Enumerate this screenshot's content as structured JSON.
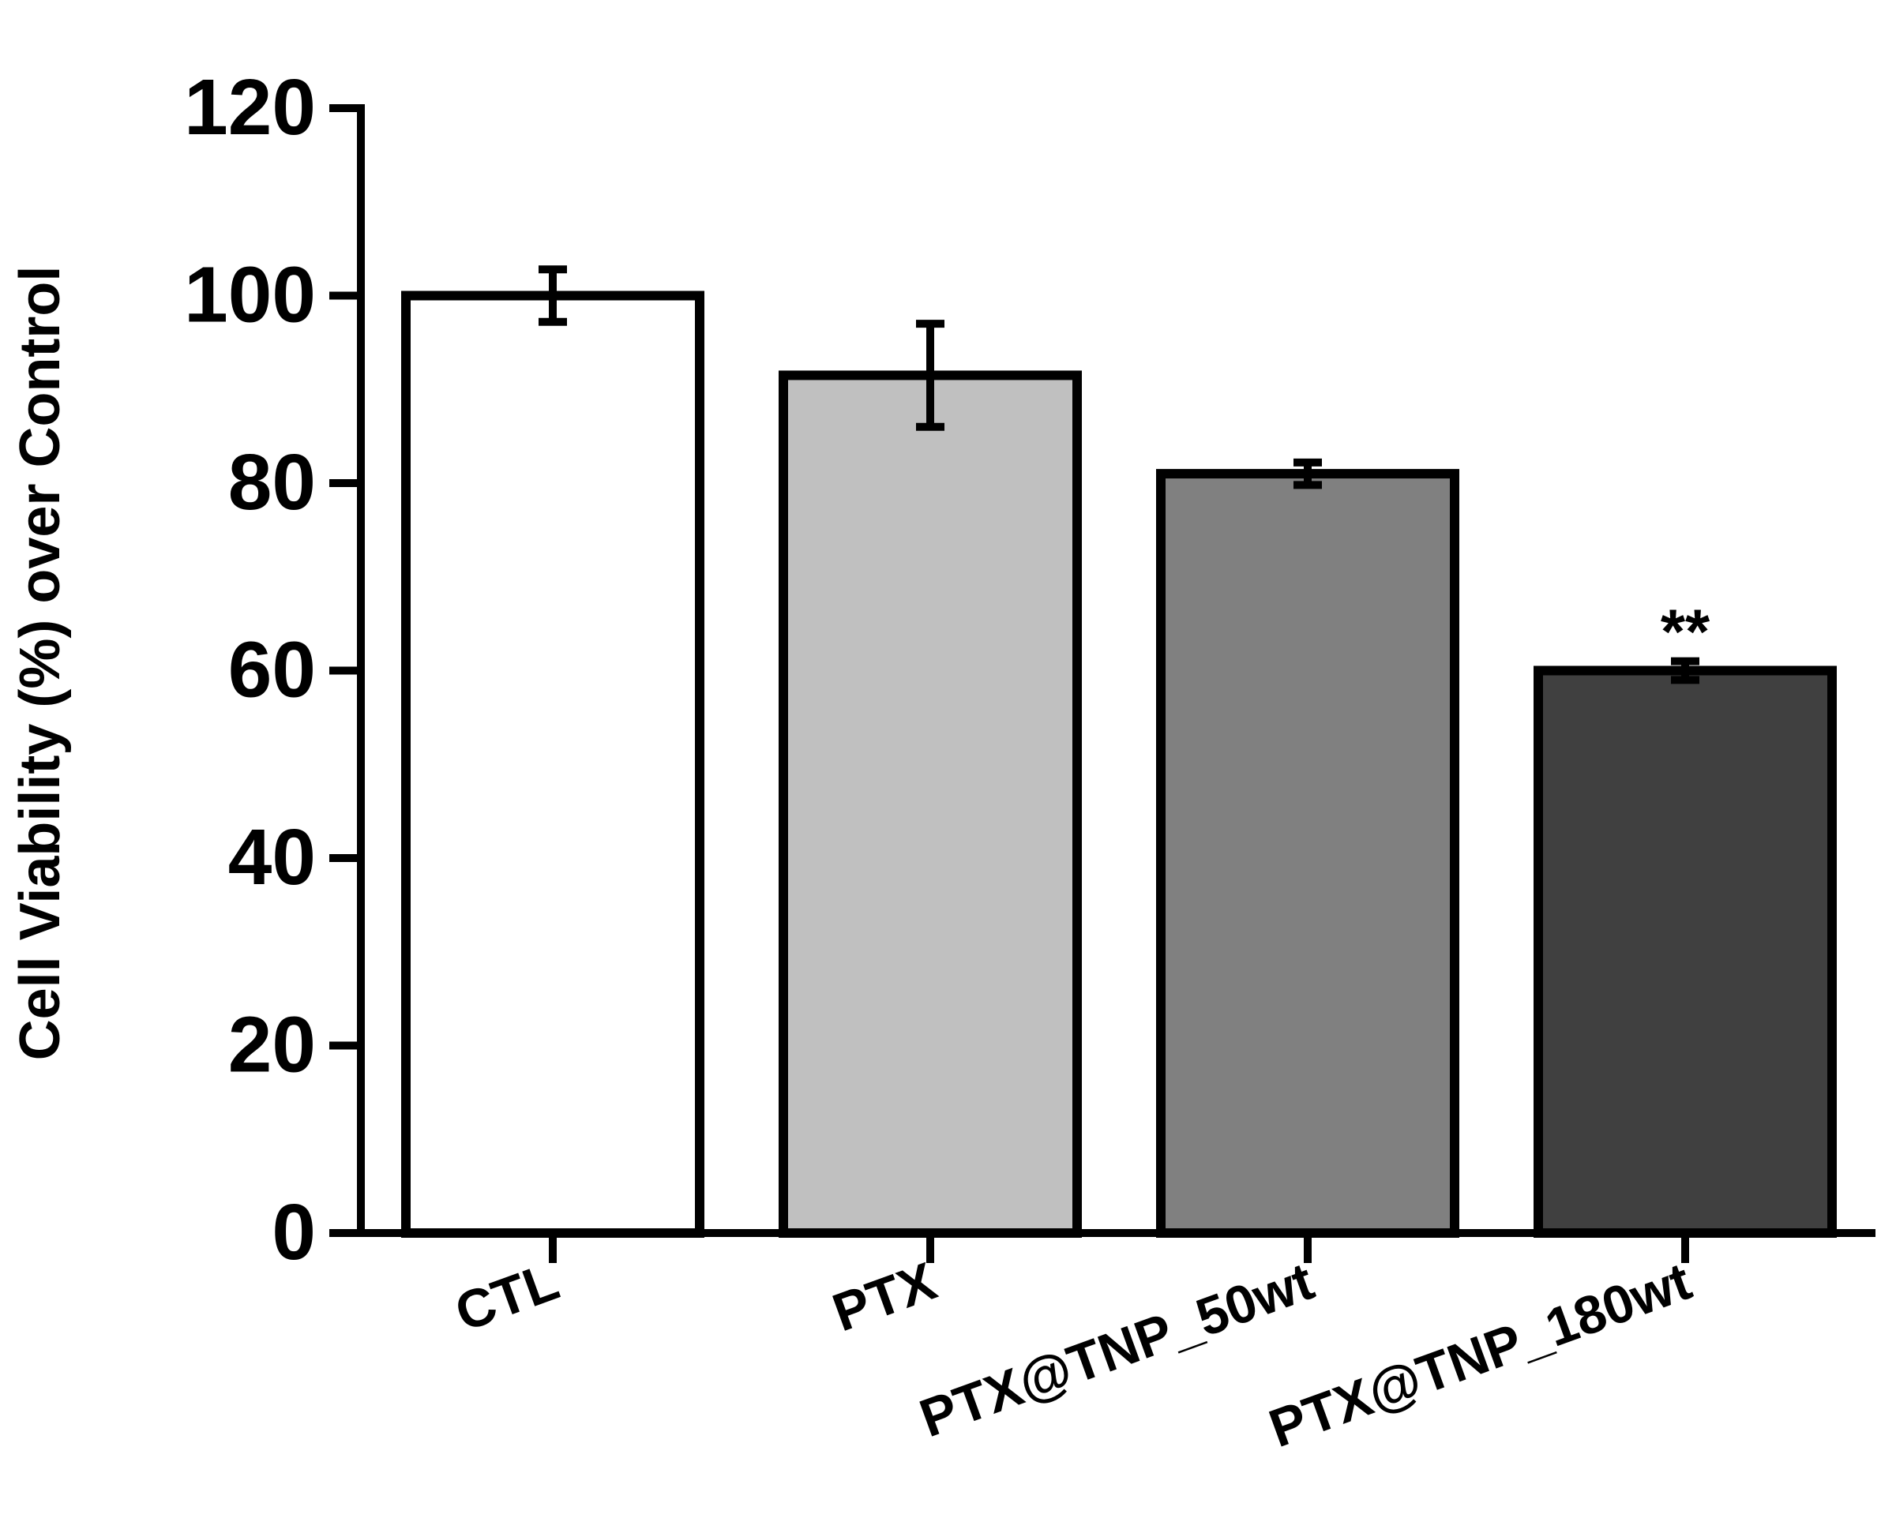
{
  "chart_data": {
    "type": "bar",
    "title": "",
    "xlabel": "",
    "ylabel": "Cell Viability (%) over Control",
    "categories": [
      "CTL",
      "PTX",
      "PTX@TNP_50wt",
      "PTX@TNP_180wt"
    ],
    "values": [
      100,
      91.5,
      81,
      60
    ],
    "errors": [
      2.8,
      5.5,
      1.2,
      1.0
    ],
    "annotations": [
      {
        "category": "PTX@TNP_180wt",
        "text": "**"
      }
    ],
    "bar_colors": [
      "#ffffff",
      "#c0c0c0",
      "#808080",
      "#404040"
    ],
    "bar_edge_color": "#000000",
    "ylim": [
      0,
      120
    ],
    "yticks": [
      0,
      20,
      40,
      60,
      80,
      100,
      120
    ],
    "grid": false,
    "legend": "none"
  }
}
